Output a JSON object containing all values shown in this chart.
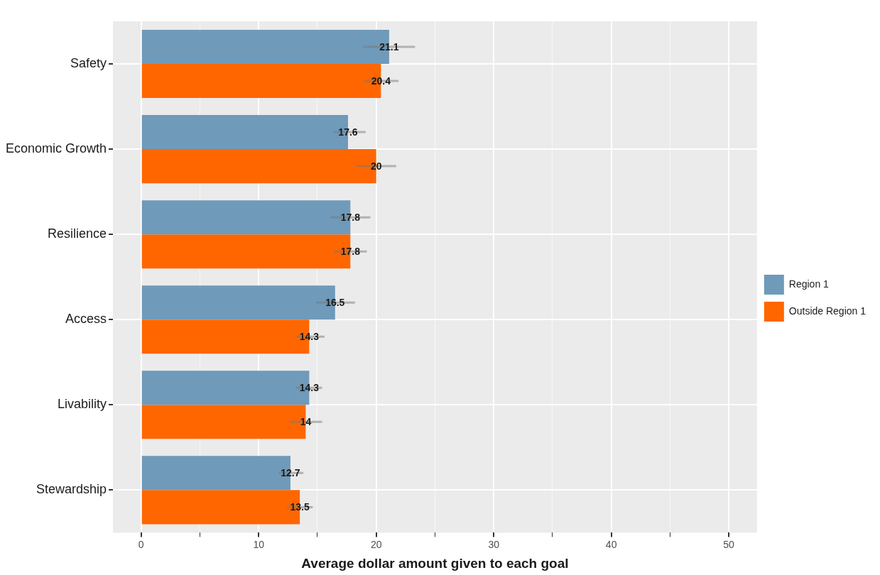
{
  "chart_data": {
    "type": "bar",
    "orientation": "horizontal",
    "xlabel": "Average dollar amount given to each goal",
    "categories": [
      "Safety",
      "Economic Growth",
      "Resilience",
      "Access",
      "Livability",
      "Stewardship"
    ],
    "series": [
      {
        "name": "Region 1",
        "color": "#6f9aba",
        "values": [
          21.1,
          17.6,
          17.8,
          16.5,
          14.3,
          12.7
        ],
        "errors": [
          [
            18.9,
            23.3
          ],
          [
            16.3,
            19.1
          ],
          [
            16.1,
            19.5
          ],
          [
            14.9,
            18.2
          ],
          [
            13.2,
            15.4
          ],
          [
            11.7,
            13.8
          ]
        ]
      },
      {
        "name": "Outside Region 1",
        "color": "#ff6600",
        "values": [
          20.4,
          20,
          17.8,
          14.3,
          14,
          13.5
        ],
        "errors": [
          [
            19.0,
            21.9
          ],
          [
            18.3,
            21.7
          ],
          [
            16.4,
            19.2
          ],
          [
            13.1,
            15.6
          ],
          [
            12.6,
            15.4
          ],
          [
            12.4,
            14.6
          ]
        ]
      }
    ],
    "xlim": [
      -2.4,
      52.4
    ],
    "xticks": [
      0,
      {
        "value": 5,
        "label": null
      },
      10,
      {
        "value": 15,
        "label": null
      },
      20,
      {
        "value": 25,
        "label": null
      },
      30,
      {
        "value": 35,
        "label": null
      },
      40,
      {
        "value": 45,
        "label": null
      },
      50
    ],
    "grid": true,
    "legend": "right",
    "data_labels": true
  }
}
